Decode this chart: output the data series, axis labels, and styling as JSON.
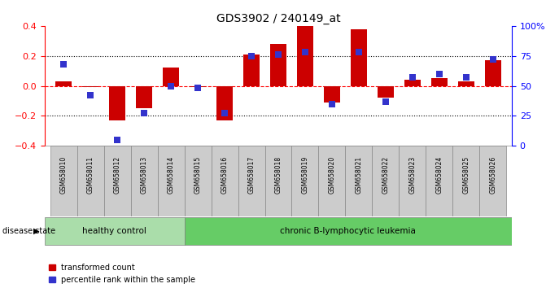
{
  "title": "GDS3902 / 240149_at",
  "samples": [
    "GSM658010",
    "GSM658011",
    "GSM658012",
    "GSM658013",
    "GSM658014",
    "GSM658015",
    "GSM658016",
    "GSM658017",
    "GSM658018",
    "GSM658019",
    "GSM658020",
    "GSM658021",
    "GSM658022",
    "GSM658023",
    "GSM658024",
    "GSM658025",
    "GSM658026"
  ],
  "transformed_count": [
    0.03,
    -0.01,
    -0.23,
    -0.15,
    0.12,
    -0.01,
    -0.23,
    0.21,
    0.28,
    0.4,
    -0.11,
    0.38,
    -0.08,
    0.04,
    0.05,
    0.03,
    0.17
  ],
  "percentile_rank": [
    68,
    42,
    5,
    27,
    50,
    48,
    27,
    75,
    76,
    78,
    35,
    78,
    37,
    57,
    60,
    57,
    72
  ],
  "healthy_control_count": 5,
  "disease_label_healthy": "healthy control",
  "disease_label_chronic": "chronic B-lymphocytic leukemia",
  "disease_state_label": "disease state",
  "legend_transformed": "transformed count",
  "legend_percentile": "percentile rank within the sample",
  "bar_color": "#CC0000",
  "marker_color": "#3333CC",
  "healthy_bg": "#AADDAA",
  "chronic_bg": "#66CC66",
  "label_cell_bg": "#CCCCCC",
  "label_cell_border": "#888888",
  "ylim": [
    -0.4,
    0.4
  ],
  "y2lim": [
    0,
    100
  ],
  "yticks": [
    -0.4,
    -0.2,
    0.0,
    0.2,
    0.4
  ],
  "y2ticks": [
    0,
    25,
    50,
    75,
    100
  ],
  "bar_width": 0.6
}
